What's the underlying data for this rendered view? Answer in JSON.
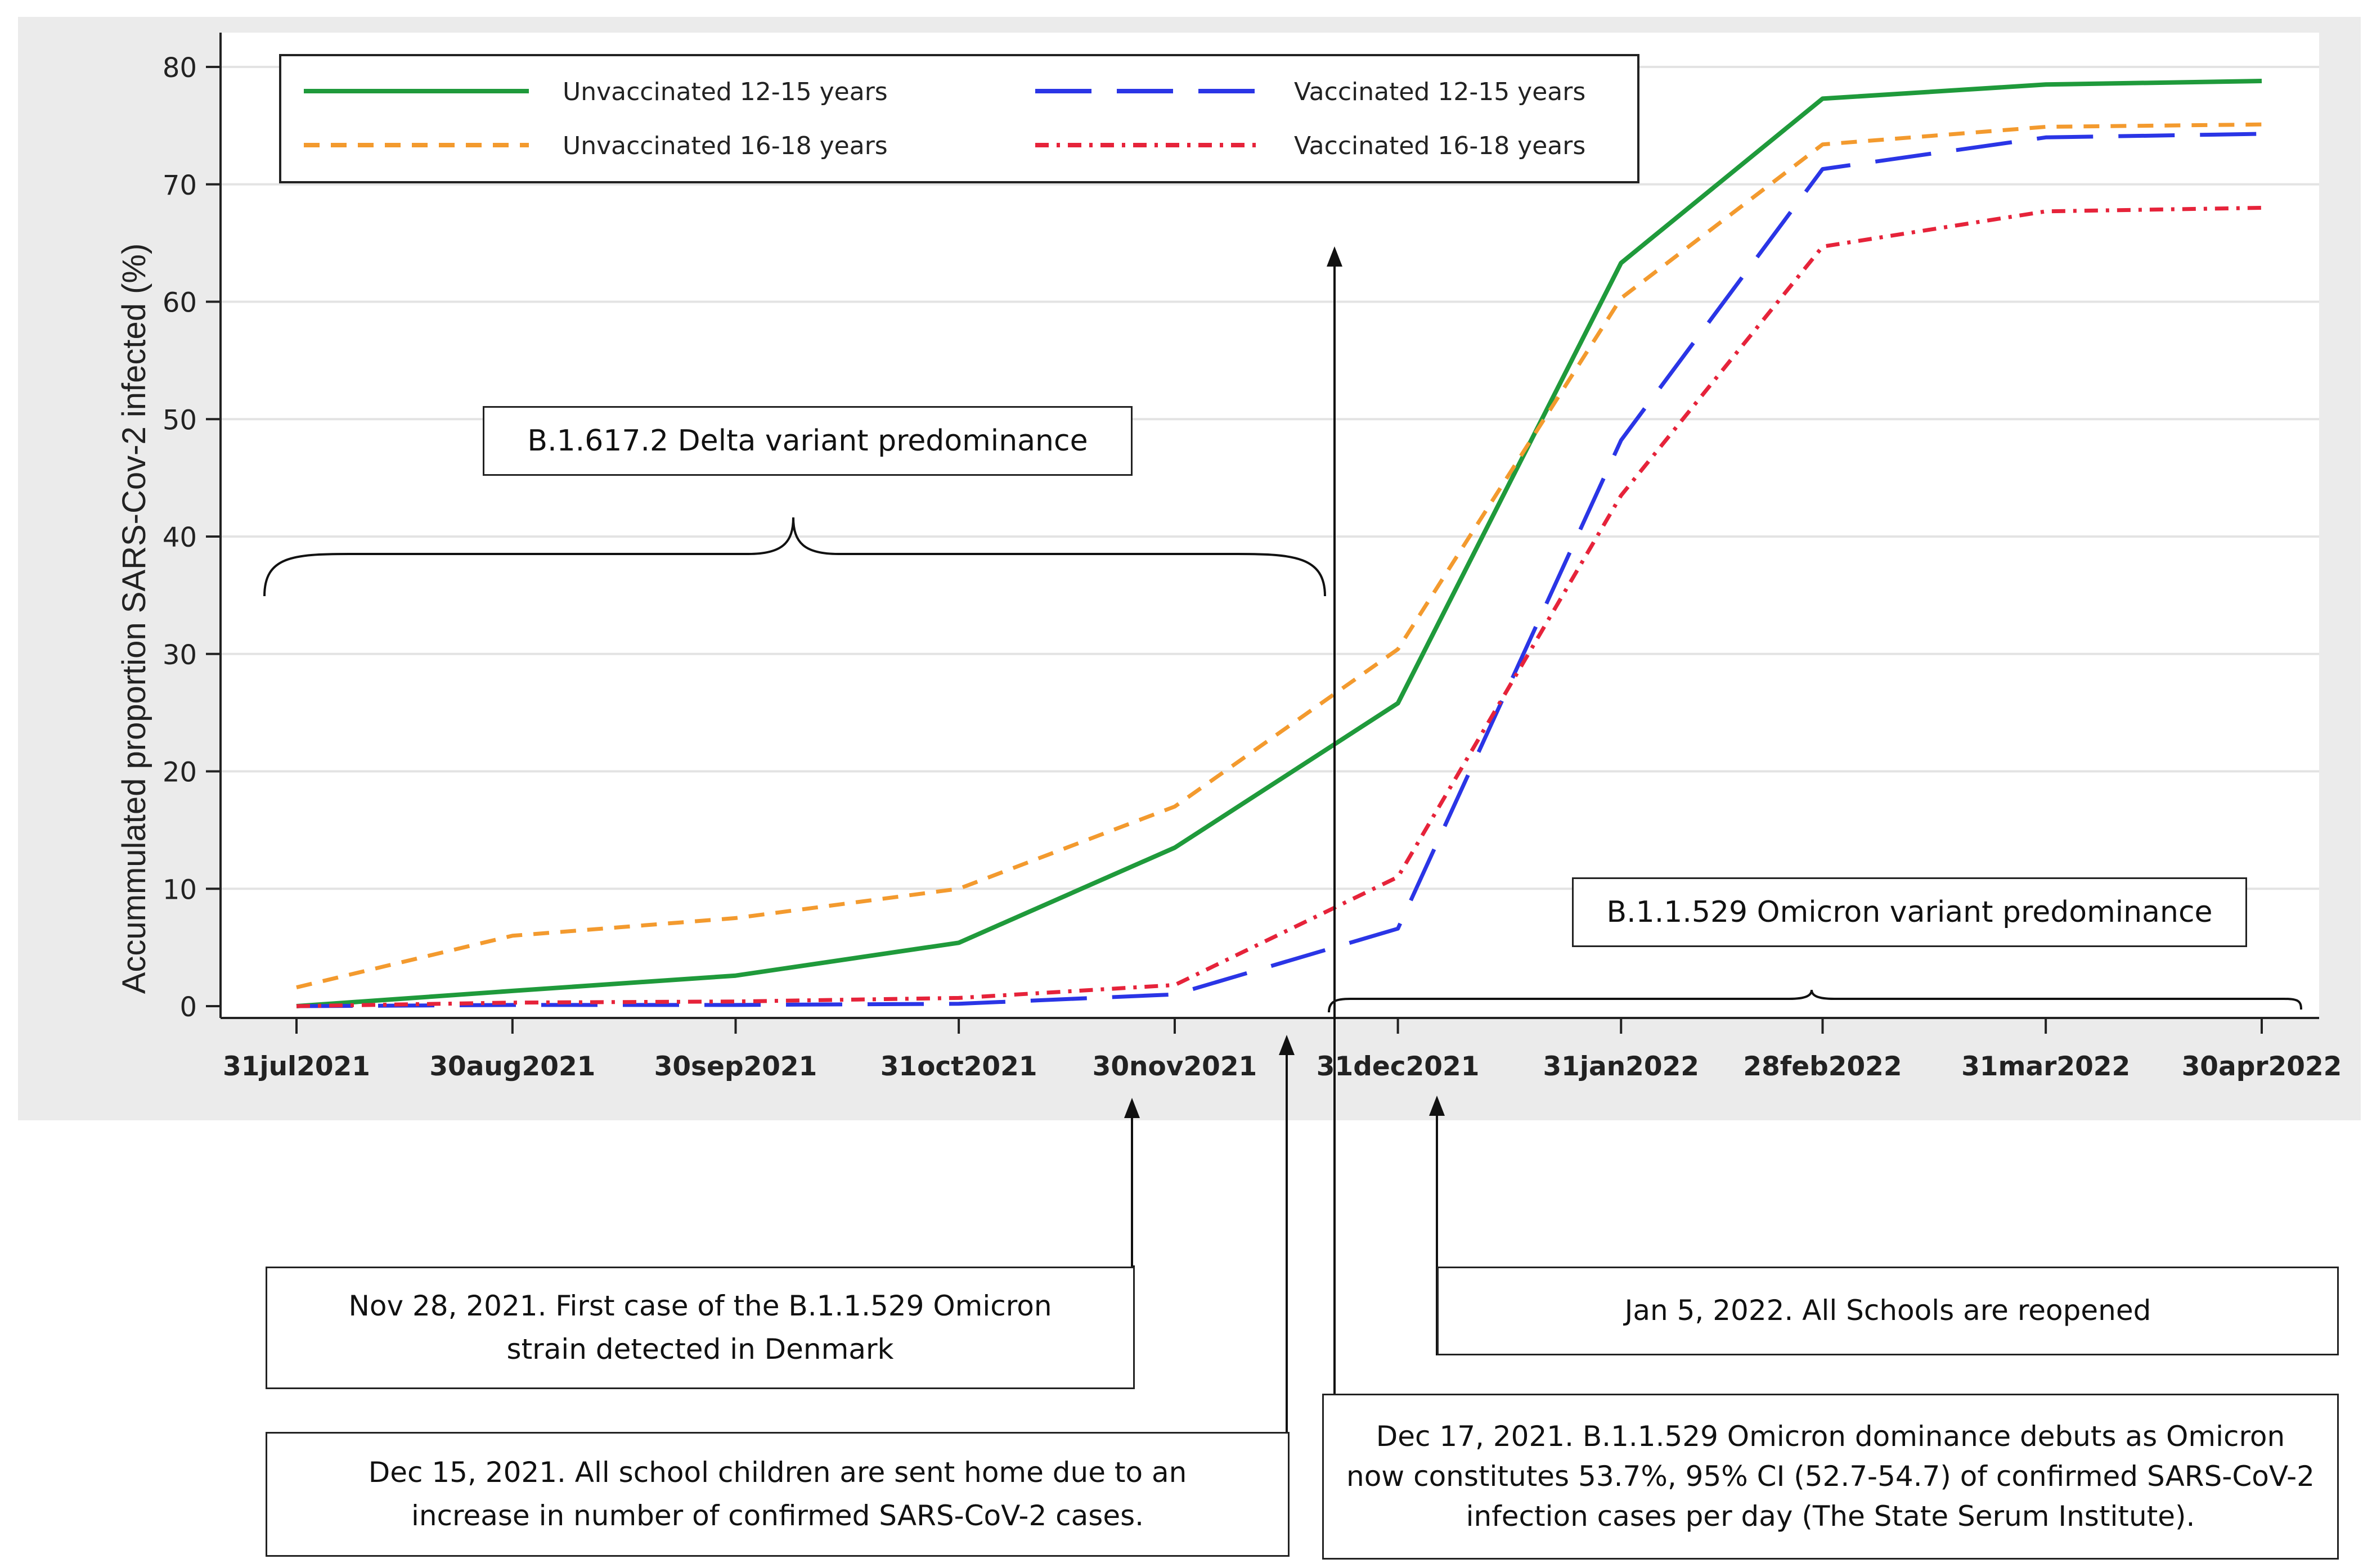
{
  "chart_data": {
    "type": "line",
    "ylabel": "Accummulated proportion SARS-Cov-2 infected (%)",
    "xlabel": "",
    "ylim": [
      0,
      80
    ],
    "yticks": [
      0,
      10,
      20,
      30,
      40,
      50,
      60,
      70,
      80
    ],
    "x_ticks": [
      "2021-07-31",
      "2021-08-30",
      "2021-09-30",
      "2021-10-31",
      "2021-11-30",
      "2021-12-31",
      "2022-01-31",
      "2022-02-28",
      "2022-03-31",
      "2022-04-30"
    ],
    "x_tick_labels": [
      "31jul2021",
      "30aug2021",
      "30sep2021",
      "31oct2021",
      "30nov2021",
      "31dec2021",
      "31jan2022",
      "28feb2022",
      "31mar2022",
      "30apr2022"
    ],
    "grid": true,
    "legend_position": "top-left",
    "series": [
      {
        "name": "Unvaccinated 12-15 years",
        "color": "#1f9a3b",
        "style": "solid",
        "x": [
          "2021-07-31",
          "2021-08-30",
          "2021-09-30",
          "2021-10-31",
          "2021-11-30",
          "2021-12-31",
          "2022-01-31",
          "2022-02-28",
          "2022-03-31",
          "2022-04-30"
        ],
        "y": [
          0,
          1.3,
          2.6,
          5.4,
          13.5,
          25.8,
          63.3,
          77.3,
          78.5,
          78.8
        ]
      },
      {
        "name": "Vaccinated 12-15 years",
        "color": "#2a35e6",
        "style": "longdash",
        "x": [
          "2021-07-31",
          "2021-08-30",
          "2021-09-30",
          "2021-10-31",
          "2021-11-30",
          "2021-12-31",
          "2022-01-31",
          "2022-02-28",
          "2022-03-31",
          "2022-04-30"
        ],
        "y": [
          0,
          0.1,
          0.1,
          0.2,
          1.0,
          6.6,
          48.2,
          71.3,
          74.0,
          74.3
        ]
      },
      {
        "name": "Unvaccinated 16-18 years",
        "color": "#f39a2e",
        "style": "shortdash",
        "x": [
          "2021-07-31",
          "2021-08-30",
          "2021-09-30",
          "2021-10-31",
          "2021-11-30",
          "2021-12-31",
          "2022-01-31",
          "2022-02-28",
          "2022-03-31",
          "2022-04-30"
        ],
        "y": [
          1.6,
          6.0,
          7.5,
          10.0,
          17.0,
          30.4,
          60.3,
          73.4,
          74.9,
          75.1
        ]
      },
      {
        "name": "Vaccinated 16-18 years",
        "color": "#e6233a",
        "style": "dashdot",
        "x": [
          "2021-07-31",
          "2021-08-30",
          "2021-09-30",
          "2021-10-31",
          "2021-11-30",
          "2021-12-31",
          "2022-01-31",
          "2022-02-28",
          "2022-03-31",
          "2022-04-30"
        ],
        "y": [
          0,
          0.3,
          0.4,
          0.7,
          1.8,
          11.0,
          43.5,
          64.7,
          67.7,
          68.0
        ]
      }
    ],
    "annotations": {
      "delta": "B.1.617.2  Delta variant predominance",
      "omicron": "B.1.1.529  Omicron variant predominance",
      "nov28": "Nov 28, 2021.  First case of the B.1.1.529  Omicron strain detected in Denmark",
      "dec15": "Dec 15, 2021.  All school children are sent home due to an increase in number of confirmed SARS-CoV-2 cases.",
      "dec17": "Dec 17, 2021.  B.1.1.529  Omicron dominance debuts as Omicron now constitutes 53.7%, 95% CI (52.7-54.7)  of confirmed SARS-CoV-2 infection cases per day (The State Serum Institute).",
      "jan5": "Jan 5, 2022.  All Schools are reopened"
    }
  }
}
